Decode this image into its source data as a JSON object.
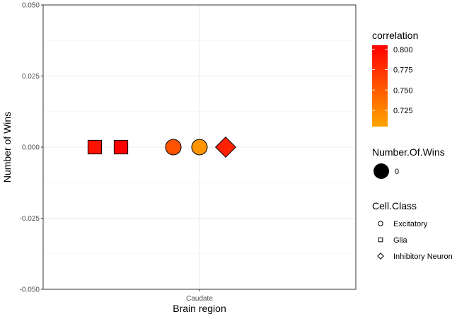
{
  "chart_data": {
    "type": "scatter",
    "xlabel": "Brain region",
    "ylabel": "Number of Wins",
    "categories": [
      "Caudate"
    ],
    "ylim": [
      -0.05,
      0.05
    ],
    "yticks": [
      "0.050",
      "0.025",
      "0.000",
      "-0.025",
      "-0.050"
    ],
    "grid": true,
    "points": [
      {
        "category": "Caudate",
        "y": 0,
        "dodge": -4,
        "cell_class": "Glia",
        "correlation": 0.795,
        "wins": 0
      },
      {
        "category": "Caudate",
        "y": 0,
        "dodge": -3,
        "cell_class": "Glia",
        "correlation": 0.805,
        "wins": 0
      },
      {
        "category": "Caudate",
        "y": 0,
        "dodge": -1,
        "cell_class": "Excitatory",
        "correlation": 0.755,
        "wins": 0
      },
      {
        "category": "Caudate",
        "y": 0,
        "dodge": 0,
        "cell_class": "Excitatory",
        "correlation": 0.715,
        "wins": 0
      },
      {
        "category": "Caudate",
        "y": 0,
        "dodge": 1,
        "cell_class": "Inhibitory Neuron",
        "correlation": 0.785,
        "wins": 0
      }
    ],
    "legend": {
      "position": "right",
      "color": {
        "title": "correlation",
        "range": [
          0.705,
          0.805
        ],
        "low_color": "#FFA500",
        "high_color": "#FF0000",
        "breaks": [
          0.8,
          0.775,
          0.75,
          0.725
        ],
        "labels": [
          "0.800",
          "0.775",
          "0.750",
          "0.725"
        ]
      },
      "size": {
        "title": "Number.Of.Wins",
        "labels": [
          "0"
        ]
      },
      "shape": {
        "title": "Cell.Class",
        "labels": [
          "Excitatory",
          "Glia",
          "Inhibitory Neuron"
        ],
        "shapes": [
          "circle",
          "square",
          "diamond"
        ]
      }
    }
  }
}
